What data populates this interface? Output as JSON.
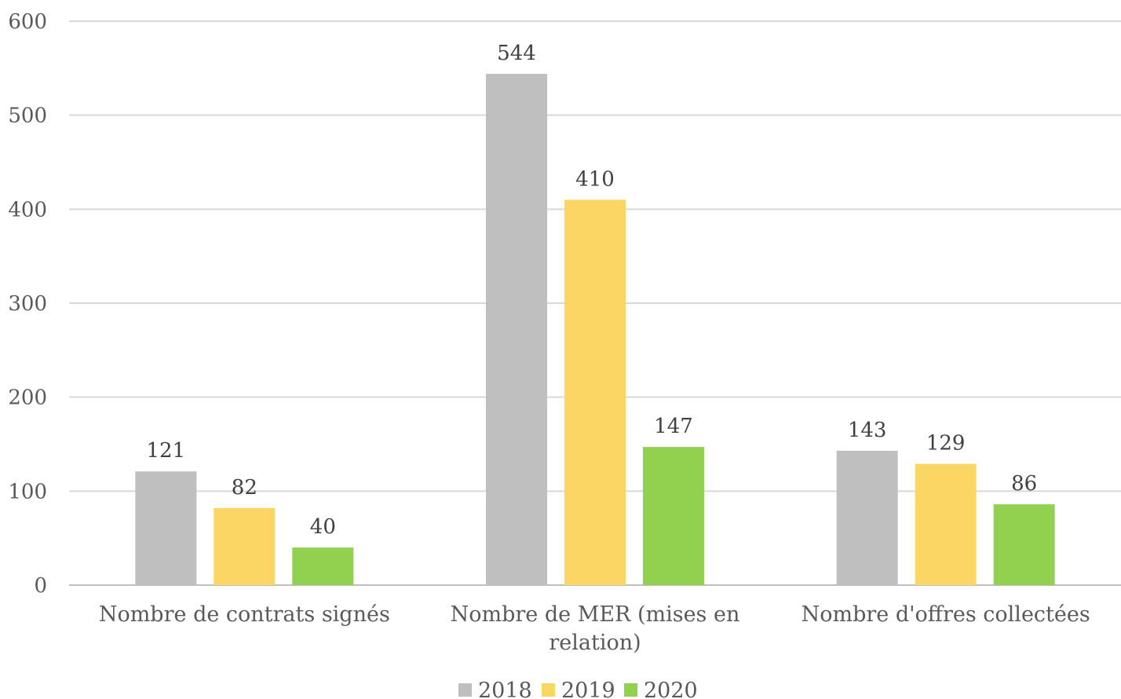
{
  "chart_data": {
    "type": "bar",
    "title": "",
    "xlabel": "",
    "ylabel": "",
    "categories": [
      [
        "Nombre de contrats signés"
      ],
      [
        "Nombre de MER (mises en",
        "relation)"
      ],
      [
        "Nombre d'offres collectées"
      ]
    ],
    "series": [
      {
        "name": "2018",
        "color": "#BFBFBF",
        "values": [
          121,
          544,
          143
        ]
      },
      {
        "name": "2019",
        "color": "#FCD664",
        "values": [
          82,
          410,
          129
        ]
      },
      {
        "name": "2020",
        "color": "#92D050",
        "values": [
          40,
          147,
          86
        ]
      }
    ],
    "ylim": [
      0,
      600
    ],
    "yticks": [
      0,
      100,
      200,
      300,
      400,
      500,
      600
    ],
    "grid": true,
    "legend": "bottom-center",
    "data_labels": true
  }
}
